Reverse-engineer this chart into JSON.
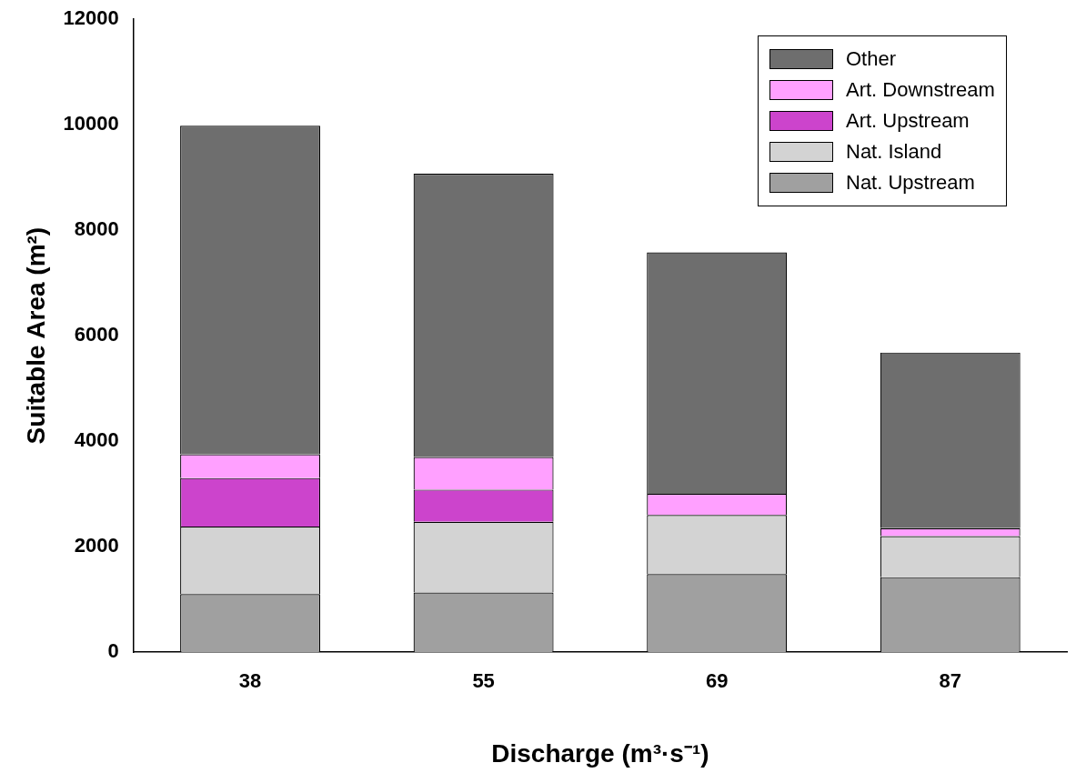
{
  "chart_data": {
    "type": "bar",
    "stacked": true,
    "xlabel": "Discharge (m³·s⁻¹)",
    "ylabel": "Suitable Area (m²)",
    "categories": [
      "38",
      "55",
      "69",
      "87"
    ],
    "series": [
      {
        "name": "Nat. Upstream",
        "color": "#a0a0a0",
        "values": [
          1100,
          1130,
          1480,
          1420
        ]
      },
      {
        "name": "Nat. Island",
        "color": "#d3d3d3",
        "values": [
          1280,
          1340,
          1120,
          780
        ]
      },
      {
        "name": "Art. Upstream",
        "color": "#cc44cc",
        "values": [
          920,
          610,
          0,
          0
        ]
      },
      {
        "name": "Art. Downstream",
        "color": "#ffa0ff",
        "values": [
          450,
          620,
          400,
          150
        ]
      },
      {
        "name": "Other",
        "color": "#6e6e6e",
        "values": [
          6230,
          5370,
          4580,
          3330
        ]
      }
    ],
    "ylim": [
      0,
      12000
    ],
    "yticks": [
      0,
      2000,
      4000,
      6000,
      8000,
      10000,
      12000
    ],
    "grid": false,
    "legend": "top right"
  }
}
